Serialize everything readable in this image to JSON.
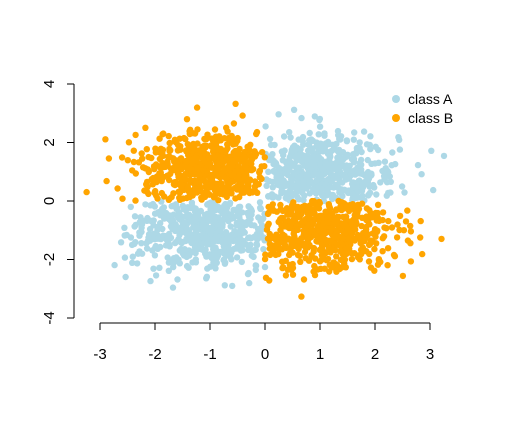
{
  "chart_data": {
    "type": "scatter",
    "title": "",
    "xlabel": "",
    "ylabel": "",
    "xlim": [
      -3.3,
      3.4
    ],
    "ylim": [
      -4,
      4
    ],
    "x_ticks": [
      -3,
      -2,
      -1,
      0,
      1,
      2,
      3
    ],
    "x_tick_labels": [
      "-3",
      "-2",
      "-1",
      "0",
      "1",
      "2",
      "3"
    ],
    "y_ticks": [
      -4,
      -2,
      0,
      2,
      4
    ],
    "y_tick_labels": [
      "-4",
      "-2",
      "0",
      "2",
      "4"
    ],
    "grid": false,
    "legend_position": "top-right",
    "series": [
      {
        "name": "class A",
        "color": "#add8e6",
        "clusters": [
          {
            "center": [
              1.0,
              1.0
            ],
            "sd": [
              0.7,
              0.7
            ],
            "n": 550
          },
          {
            "center": [
              -1.0,
              -1.0
            ],
            "sd": [
              0.7,
              0.7
            ],
            "n": 550
          }
        ],
        "domain": {
          "x": [
            -3.0,
            0.0,
            0.0,
            3.5
          ],
          "y": [
            -4.0,
            0.0,
            0.0,
            4.0
          ]
        }
      },
      {
        "name": "class B",
        "color": "#ffa500",
        "clusters": [
          {
            "center": [
              -1.0,
              1.0
            ],
            "sd": [
              0.7,
              0.7
            ],
            "n": 550
          },
          {
            "center": [
              1.0,
              -1.0
            ],
            "sd": [
              0.7,
              0.7
            ],
            "n": 550
          }
        ],
        "domain": {
          "x": [
            -3.0,
            0.0,
            0.0,
            3.5
          ],
          "y": [
            0.0,
            4.0,
            -4.0,
            0.0
          ]
        }
      }
    ]
  }
}
